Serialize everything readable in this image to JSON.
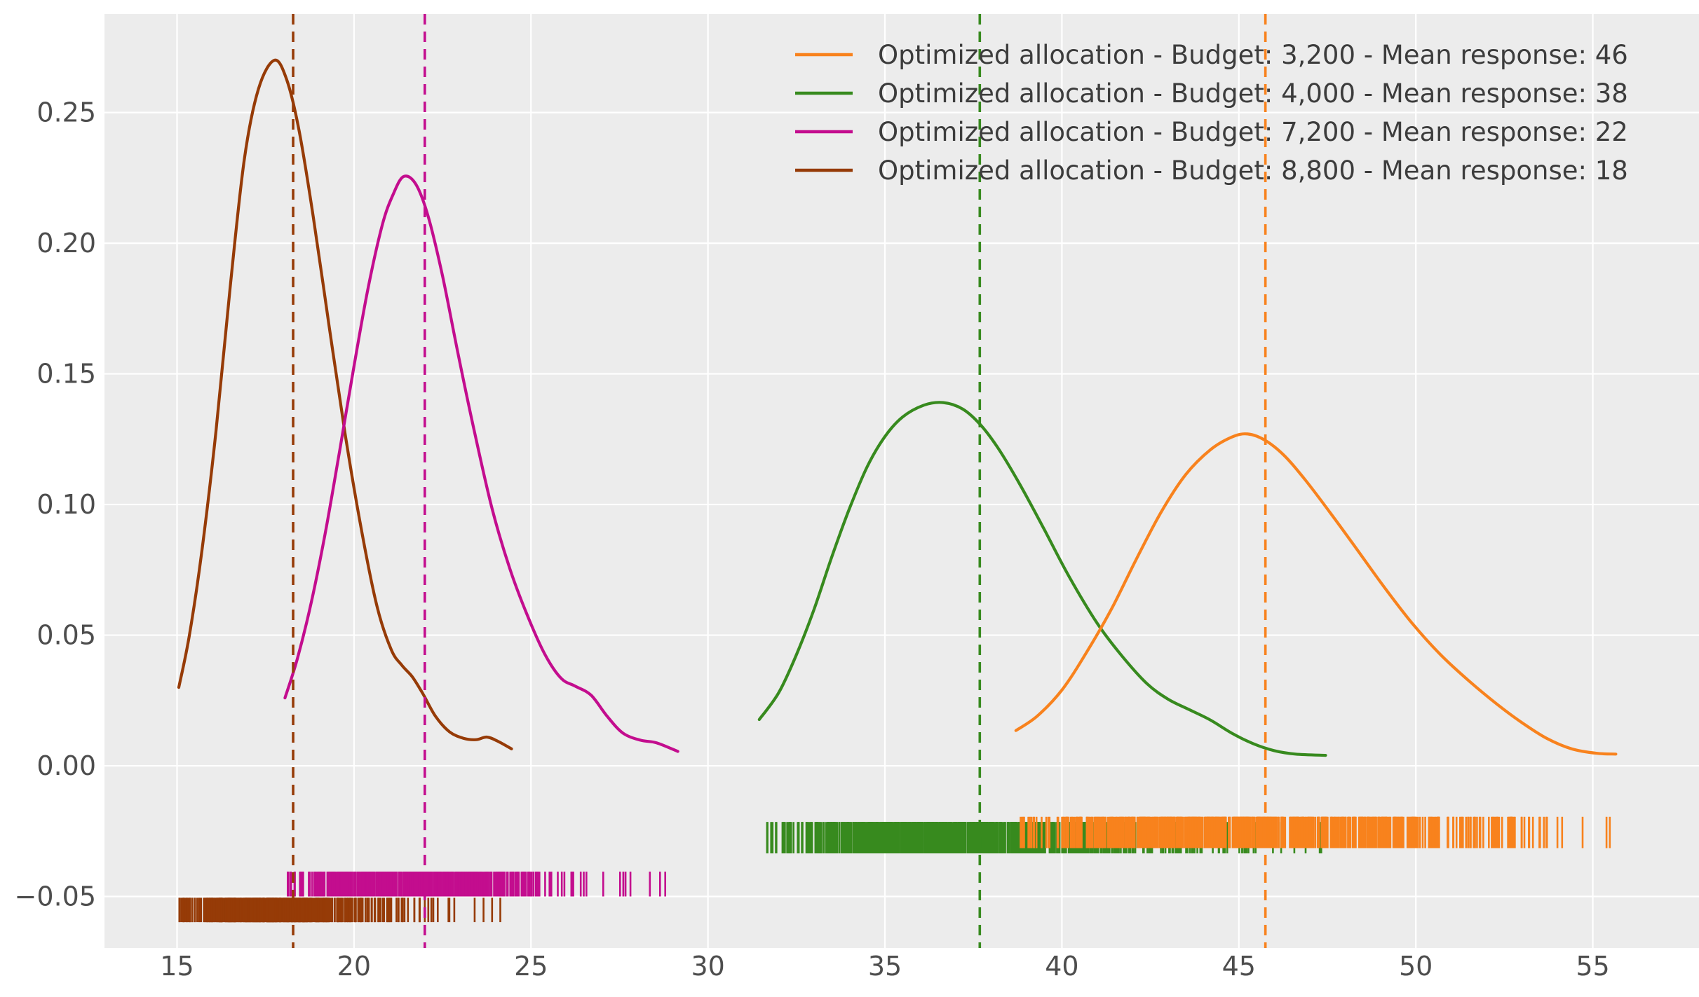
{
  "figure": {
    "bg": "#ffffff",
    "axes_bg": "#ececec",
    "grid_color": "#ffffff",
    "tick_label_color": "#4d4d4d",
    "legend_text_color": "#3c3c3c"
  },
  "chart_data": {
    "type": "line",
    "subtype": "kde-density-curves-with-rug-marks",
    "title": "",
    "xlabel": "",
    "ylabel": "",
    "xlim": [
      12.95,
      58.0
    ],
    "ylim": [
      -0.0697,
      0.2877
    ],
    "grid": true,
    "x_ticks": {
      "values": [
        15,
        20,
        25,
        30,
        35,
        40,
        45,
        50,
        55
      ],
      "labels": [
        "15",
        "20",
        "25",
        "30",
        "35",
        "40",
        "45",
        "50",
        "55"
      ]
    },
    "y_ticks": {
      "values": [
        -0.05,
        0.0,
        0.05,
        0.1,
        0.15,
        0.2,
        0.25
      ],
      "labels": [
        "−0.05",
        "0.00",
        "0.05",
        "0.10",
        "0.15",
        "0.20",
        "0.25"
      ]
    },
    "legend": {
      "position": "upper right"
    },
    "series": [
      {
        "label": "Optimized allocation - Budget: 3,200 - Mean response: 46",
        "color": "#f8821d",
        "mean_line": 45.75,
        "rug": {
          "min": 38.65,
          "max": 55.5,
          "band": [
            -0.0195,
            -0.0315
          ],
          "count": 750,
          "seed": 44
        },
        "points": [
          [
            38.7,
            0.0135
          ],
          [
            39.3,
            0.019
          ],
          [
            40.0,
            0.029
          ],
          [
            40.7,
            0.0435
          ],
          [
            41.4,
            0.06
          ],
          [
            42.1,
            0.079
          ],
          [
            42.8,
            0.097
          ],
          [
            43.5,
            0.1115
          ],
          [
            44.2,
            0.121
          ],
          [
            44.8,
            0.1258
          ],
          [
            45.25,
            0.127
          ],
          [
            45.75,
            0.1245
          ],
          [
            46.3,
            0.1185
          ],
          [
            46.9,
            0.109
          ],
          [
            47.6,
            0.0965
          ],
          [
            48.3,
            0.0835
          ],
          [
            49.1,
            0.0685
          ],
          [
            49.9,
            0.0545
          ],
          [
            50.7,
            0.0425
          ],
          [
            51.5,
            0.0325
          ],
          [
            52.3,
            0.0235
          ],
          [
            53.0,
            0.0165
          ],
          [
            53.7,
            0.0105
          ],
          [
            54.4,
            0.0065
          ],
          [
            55.1,
            0.0048
          ],
          [
            55.65,
            0.0045
          ]
        ]
      },
      {
        "label": "Optimized allocation - Budget: 4,000 - Mean response: 38",
        "color": "#378a1e",
        "mean_line": 37.68,
        "rug": {
          "min": 31.5,
          "max": 47.4,
          "band": [
            -0.0215,
            -0.0335
          ],
          "count": 750,
          "seed": 33
        },
        "points": [
          [
            31.45,
            0.0177
          ],
          [
            32.0,
            0.028
          ],
          [
            32.5,
            0.0425
          ],
          [
            33.0,
            0.06
          ],
          [
            33.5,
            0.08
          ],
          [
            34.0,
            0.0985
          ],
          [
            34.5,
            0.1145
          ],
          [
            35.0,
            0.126
          ],
          [
            35.5,
            0.1335
          ],
          [
            36.1,
            0.138
          ],
          [
            36.65,
            0.139
          ],
          [
            37.2,
            0.1365
          ],
          [
            37.7,
            0.1305
          ],
          [
            38.2,
            0.1215
          ],
          [
            38.8,
            0.108
          ],
          [
            39.5,
            0.0905
          ],
          [
            40.2,
            0.0725
          ],
          [
            41.0,
            0.0545
          ],
          [
            41.7,
            0.042
          ],
          [
            42.4,
            0.0315
          ],
          [
            43.0,
            0.0255
          ],
          [
            43.6,
            0.0215
          ],
          [
            44.2,
            0.0175
          ],
          [
            44.8,
            0.0125
          ],
          [
            45.4,
            0.0085
          ],
          [
            46.0,
            0.0058
          ],
          [
            46.6,
            0.0045
          ],
          [
            47.45,
            0.004
          ]
        ]
      },
      {
        "label": "Optimized allocation - Budget: 7,200 - Mean response: 22",
        "color": "#c30d8e",
        "mean_line": 22.0,
        "rug": {
          "min": 18.1,
          "max": 29.1,
          "band": [
            -0.0405,
            -0.05
          ],
          "count": 480,
          "seed": 22
        },
        "points": [
          [
            18.05,
            0.026
          ],
          [
            18.4,
            0.041
          ],
          [
            18.8,
            0.063
          ],
          [
            19.2,
            0.09
          ],
          [
            19.6,
            0.121
          ],
          [
            20.0,
            0.153
          ],
          [
            20.4,
            0.183
          ],
          [
            20.8,
            0.207
          ],
          [
            21.1,
            0.2185
          ],
          [
            21.4,
            0.2255
          ],
          [
            21.75,
            0.2225
          ],
          [
            22.1,
            0.21
          ],
          [
            22.5,
            0.1875
          ],
          [
            22.95,
            0.157
          ],
          [
            23.4,
            0.128
          ],
          [
            23.9,
            0.0985
          ],
          [
            24.4,
            0.0755
          ],
          [
            24.9,
            0.0575
          ],
          [
            25.4,
            0.0425
          ],
          [
            25.85,
            0.0335
          ],
          [
            26.25,
            0.0305
          ],
          [
            26.7,
            0.027
          ],
          [
            27.15,
            0.019
          ],
          [
            27.6,
            0.0125
          ],
          [
            28.1,
            0.0098
          ],
          [
            28.55,
            0.0088
          ],
          [
            29.15,
            0.0055
          ]
        ]
      },
      {
        "label": "Optimized allocation - Budget: 8,800 - Mean response: 18",
        "color": "#963b07",
        "mean_line": 18.28,
        "rug": {
          "min": 15.0,
          "max": 24.35,
          "band": [
            -0.0505,
            -0.0598
          ],
          "count": 550,
          "seed": 11
        },
        "points": [
          [
            15.05,
            0.03
          ],
          [
            15.35,
            0.05
          ],
          [
            15.7,
            0.082
          ],
          [
            16.1,
            0.128
          ],
          [
            16.5,
            0.183
          ],
          [
            16.9,
            0.232
          ],
          [
            17.3,
            0.259
          ],
          [
            17.75,
            0.27
          ],
          [
            18.1,
            0.2625
          ],
          [
            18.45,
            0.243
          ],
          [
            18.85,
            0.21
          ],
          [
            19.3,
            0.168
          ],
          [
            19.75,
            0.127
          ],
          [
            20.2,
            0.091
          ],
          [
            20.65,
            0.061
          ],
          [
            21.05,
            0.0445
          ],
          [
            21.35,
            0.0385
          ],
          [
            21.65,
            0.034
          ],
          [
            21.95,
            0.0275
          ],
          [
            22.3,
            0.019
          ],
          [
            22.7,
            0.013
          ],
          [
            23.1,
            0.0105
          ],
          [
            23.45,
            0.01
          ],
          [
            23.75,
            0.011
          ],
          [
            24.05,
            0.0095
          ],
          [
            24.45,
            0.0065
          ]
        ]
      }
    ]
  }
}
